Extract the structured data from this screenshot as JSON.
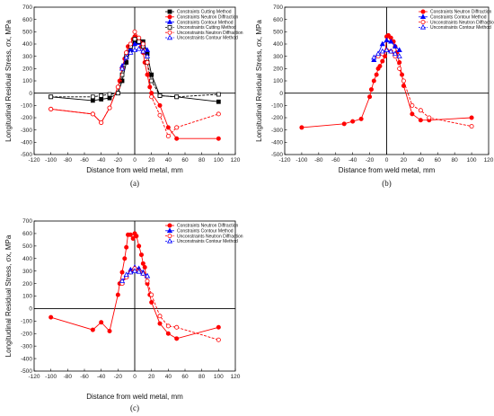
{
  "figure": {
    "panel_labels": [
      "(a)",
      "(b)",
      "(c)"
    ]
  },
  "chart_data": [
    {
      "type": "line",
      "panel": "(a)",
      "xlabel": "Distance from weld metal, mm",
      "ylabel": "Longitudinal Residual Stress, σx, MPa",
      "xlim": [
        -120,
        120
      ],
      "ylim": [
        -500,
        700
      ],
      "xticks": [
        -120,
        -100,
        -80,
        -60,
        -40,
        -20,
        0,
        20,
        40,
        60,
        80,
        100,
        120
      ],
      "yticks": [
        -500,
        -400,
        -300,
        -200,
        -100,
        0,
        100,
        200,
        300,
        400,
        500,
        600,
        700
      ],
      "legend_position": "top-right",
      "series": [
        {
          "name": "Constraints Cutting Method",
          "color": "#000000",
          "marker": "square",
          "filled": true,
          "dashed": false,
          "x": [
            -100,
            -50,
            -40,
            -30,
            -20,
            -15,
            -10,
            -5,
            0,
            5,
            10,
            15,
            20,
            30,
            50,
            100
          ],
          "y": [
            -30,
            -60,
            -50,
            -40,
            0,
            100,
            250,
            350,
            420,
            440,
            420,
            320,
            150,
            -20,
            -30,
            -70
          ]
        },
        {
          "name": "Constraints Neutron Diffraction",
          "color": "#ff0000",
          "marker": "circle",
          "filled": true,
          "dashed": false,
          "x": [
            -100,
            -50,
            -40,
            -30,
            -20,
            -18,
            -15,
            -12,
            -10,
            -8,
            -5,
            -2,
            0,
            2,
            5,
            8,
            10,
            12,
            15,
            18,
            20,
            30,
            40,
            50,
            100
          ],
          "y": [
            -130,
            -170,
            -240,
            -120,
            50,
            100,
            200,
            280,
            330,
            380,
            400,
            440,
            460,
            450,
            420,
            380,
            330,
            250,
            150,
            50,
            0,
            -100,
            -280,
            -370,
            -370
          ]
        },
        {
          "name": "Constraints Contour Method",
          "color": "#0000ff",
          "marker": "triangle",
          "filled": true,
          "dashed": false,
          "x": [
            -15,
            -10,
            -5,
            0,
            5,
            10,
            15
          ],
          "y": [
            220,
            300,
            360,
            400,
            410,
            400,
            350
          ]
        },
        {
          "name": "Unconstraints Cutting Method",
          "color": "#000000",
          "marker": "square",
          "filled": false,
          "dashed": true,
          "x": [
            -100,
            -50,
            -40,
            -30,
            -20,
            -15,
            -10,
            -5,
            0,
            5,
            10,
            15,
            20,
            30,
            50,
            100
          ],
          "y": [
            -30,
            -30,
            -20,
            -10,
            0,
            150,
            300,
            380,
            440,
            420,
            380,
            250,
            100,
            -20,
            -30,
            -10
          ]
        },
        {
          "name": "Unconstraints Neutron Diffraction",
          "color": "#ff0000",
          "marker": "circle",
          "filled": false,
          "dashed": true,
          "x": [
            -100,
            -50,
            -40,
            -30,
            -20,
            -15,
            -10,
            -5,
            0,
            5,
            10,
            15,
            20,
            30,
            40,
            50,
            100
          ],
          "y": [
            -130,
            -170,
            -240,
            -120,
            50,
            200,
            330,
            400,
            500,
            450,
            400,
            250,
            -30,
            -180,
            -350,
            -280,
            -170
          ]
        },
        {
          "name": "Unconstraints Contour Method",
          "color": "#0000ff",
          "marker": "triangle",
          "filled": false,
          "dashed": true,
          "x": [
            -15,
            -10,
            -5,
            0,
            5,
            10,
            15
          ],
          "y": [
            200,
            290,
            330,
            350,
            360,
            340,
            300
          ]
        }
      ]
    },
    {
      "type": "line",
      "panel": "(b)",
      "xlabel": "Distance from weld metal, mm",
      "ylabel": "Longitudinal Residual Stress, σx, MPa",
      "xlim": [
        -120,
        120
      ],
      "ylim": [
        -500,
        700
      ],
      "xticks": [
        -120,
        -100,
        -80,
        -60,
        -40,
        -20,
        0,
        20,
        40,
        60,
        80,
        100,
        120
      ],
      "yticks": [
        -500,
        -400,
        -300,
        -200,
        -100,
        0,
        100,
        200,
        300,
        400,
        500,
        600,
        700
      ],
      "legend_position": "top-right",
      "series": [
        {
          "name": "Constraints Neutron Diffraction",
          "color": "#ff0000",
          "marker": "circle",
          "filled": true,
          "dashed": false,
          "x": [
            -100,
            -50,
            -40,
            -30,
            -20,
            -18,
            -15,
            -12,
            -10,
            -8,
            -5,
            -2,
            0,
            2,
            5,
            8,
            10,
            12,
            15,
            18,
            20,
            30,
            40,
            50,
            100
          ],
          "y": [
            -280,
            -250,
            -230,
            -210,
            -30,
            30,
            100,
            150,
            200,
            220,
            260,
            300,
            460,
            470,
            450,
            420,
            380,
            330,
            250,
            150,
            60,
            -170,
            -220,
            -220,
            -200
          ]
        },
        {
          "name": "Constraints Contour Method",
          "color": "#0000ff",
          "marker": "triangle",
          "filled": true,
          "dashed": false,
          "x": [
            -15,
            -10,
            -5,
            0,
            5,
            10,
            15
          ],
          "y": [
            270,
            320,
            400,
            430,
            420,
            380,
            350
          ]
        },
        {
          "name": "Unconstraints Neutron Diffraction",
          "color": "#ff0000",
          "marker": "circle",
          "filled": false,
          "dashed": true,
          "x": [
            -10,
            -5,
            0,
            5,
            10,
            15,
            20,
            30,
            40,
            50,
            100
          ],
          "y": [
            300,
            320,
            350,
            340,
            300,
            200,
            100,
            -100,
            -140,
            -200,
            -270
          ]
        },
        {
          "name": "Unconstraints Contour Method",
          "color": "#0000ff",
          "marker": "triangle",
          "filled": false,
          "dashed": true,
          "x": [
            -15,
            -10,
            -5,
            0,
            5,
            10,
            15
          ],
          "y": [
            290,
            320,
            340,
            350,
            340,
            320,
            300
          ]
        }
      ]
    },
    {
      "type": "line",
      "panel": "(c)",
      "xlabel": "Distance from weld metal, mm",
      "ylabel": "Longitudinal Residual Stress, σx, MPa",
      "xlim": [
        -120,
        120
      ],
      "ylim": [
        -500,
        700
      ],
      "xticks": [
        -120,
        -100,
        -80,
        -60,
        -40,
        -20,
        0,
        20,
        40,
        60,
        80,
        100,
        120
      ],
      "yticks": [
        -500,
        -400,
        -300,
        -200,
        -100,
        0,
        100,
        200,
        300,
        400,
        500,
        600,
        700
      ],
      "legend_position": "top-right",
      "series": [
        {
          "name": "Constraints Neutron Diffraction",
          "color": "#ff0000",
          "marker": "circle",
          "filled": true,
          "dashed": false,
          "x": [
            -100,
            -50,
            -40,
            -30,
            -20,
            -18,
            -15,
            -12,
            -10,
            -8,
            -5,
            -2,
            0,
            2,
            5,
            8,
            10,
            12,
            15,
            18,
            20,
            30,
            40,
            50,
            100
          ],
          "y": [
            -70,
            -170,
            -110,
            -180,
            110,
            200,
            290,
            400,
            490,
            590,
            590,
            560,
            600,
            580,
            500,
            430,
            360,
            330,
            200,
            110,
            50,
            -120,
            -200,
            -240,
            -150
          ]
        },
        {
          "name": "Constraints Contour Method",
          "color": "#0000ff",
          "marker": "triangle",
          "filled": true,
          "dashed": false,
          "x": [
            -15,
            -10,
            -5,
            0,
            5,
            10,
            15
          ],
          "y": [
            210,
            260,
            310,
            330,
            320,
            290,
            260
          ]
        },
        {
          "name": "Unconstraints Neutron Diffraction",
          "color": "#ff0000",
          "marker": "circle",
          "filled": false,
          "dashed": true,
          "x": [
            -15,
            -10,
            -5,
            0,
            5,
            10,
            15,
            20,
            30,
            40,
            50,
            100
          ],
          "y": [
            200,
            250,
            290,
            320,
            300,
            280,
            220,
            110,
            -60,
            -140,
            -150,
            -250
          ]
        },
        {
          "name": "Unconstraints Contour Method",
          "color": "#0000ff",
          "marker": "triangle",
          "filled": false,
          "dashed": true,
          "x": [
            -15,
            -10,
            -5,
            0,
            5,
            10,
            15
          ],
          "y": [
            220,
            270,
            290,
            300,
            295,
            280,
            260
          ]
        }
      ]
    }
  ]
}
